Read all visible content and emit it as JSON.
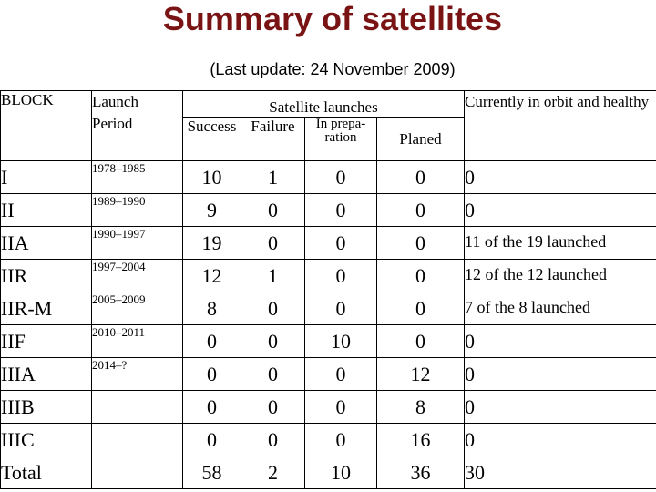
{
  "title": "Summary of satellites",
  "subtitle": "(Last update: 24 November 2009)",
  "headers": {
    "block": "BLOCK",
    "period_line1": "Launch",
    "period_line2": "Period",
    "launches": "Satellite launches",
    "success": "Success",
    "failure": "Failure",
    "prep_line1": "In prepa-",
    "prep_line2": "ration",
    "planed": "Planed",
    "orbit": "Currently in orbit and healthy"
  },
  "rows": [
    {
      "block": "I",
      "period": "1978–1985",
      "success": "10",
      "failure": "1",
      "prep": "0",
      "planed": "0",
      "orbit": "0"
    },
    {
      "block": "II",
      "period": "1989–1990",
      "success": "9",
      "failure": "0",
      "prep": "0",
      "planed": "0",
      "orbit": "0"
    },
    {
      "block": "IIA",
      "period": "1990–1997",
      "success": "19",
      "failure": "0",
      "prep": "0",
      "planed": "0",
      "orbit": "11 of the 19 launched"
    },
    {
      "block": "IIR",
      "period": "1997–2004",
      "success": "12",
      "failure": "1",
      "prep": "0",
      "planed": "0",
      "orbit": "12 of the 12 launched"
    },
    {
      "block": "IIR-M",
      "period": "2005–2009",
      "success": "8",
      "failure": "0",
      "prep": "0",
      "planed": "0",
      "orbit": "7 of the 8 launched"
    },
    {
      "block": "IIF",
      "period": "2010–2011",
      "success": "0",
      "failure": "0",
      "prep": "10",
      "planed": "0",
      "orbit": "0"
    },
    {
      "block": "IIIA",
      "period": "2014–?",
      "success": "0",
      "failure": "0",
      "prep": "0",
      "planed": "12",
      "orbit": "0"
    },
    {
      "block": "IIIB",
      "period": "",
      "success": "0",
      "failure": "0",
      "prep": "0",
      "planed": "8",
      "orbit": "0"
    },
    {
      "block": "IIIC",
      "period": "",
      "success": "0",
      "failure": "0",
      "prep": "0",
      "planed": "16",
      "orbit": "0"
    },
    {
      "block": "Total",
      "period": "",
      "success": "58",
      "failure": "2",
      "prep": "10",
      "planed": "36",
      "orbit": "30"
    }
  ]
}
